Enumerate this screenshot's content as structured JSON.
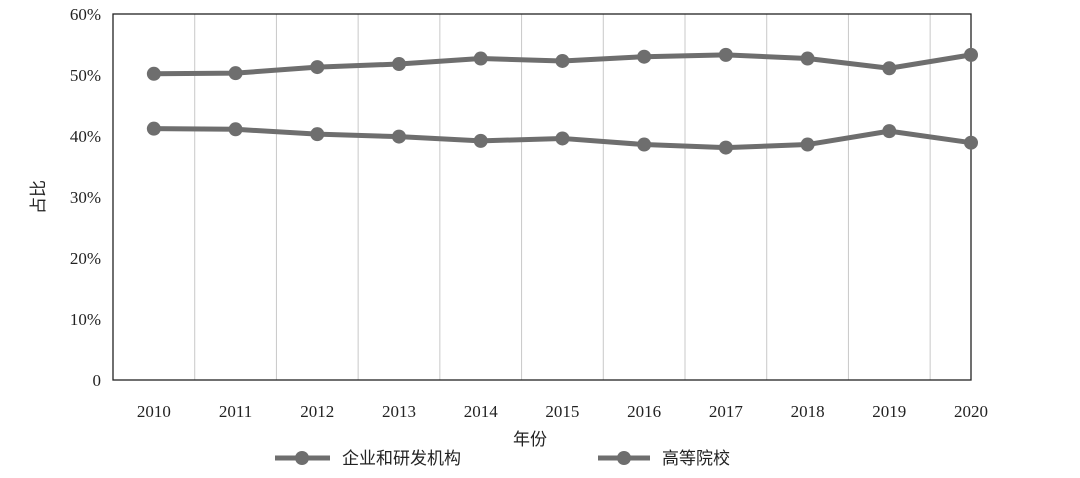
{
  "chart_data": {
    "type": "line",
    "categories": [
      "2010",
      "2011",
      "2012",
      "2013",
      "2014",
      "2015",
      "2016",
      "2017",
      "2018",
      "2019",
      "2020"
    ],
    "series": [
      {
        "name": "企业和研发机构",
        "values": [
          50.2,
          50.3,
          51.3,
          51.8,
          52.7,
          52.3,
          53.0,
          53.3,
          52.7,
          51.1,
          53.3
        ]
      },
      {
        "name": "高等院校",
        "values": [
          41.2,
          41.1,
          40.3,
          39.9,
          39.2,
          39.6,
          38.6,
          38.1,
          38.6,
          40.8,
          38.9
        ]
      }
    ],
    "y_ticks": [
      "0",
      "10%",
      "20%",
      "30%",
      "40%",
      "50%",
      "60%"
    ],
    "ylim": [
      0,
      60
    ],
    "xlabel": "年份",
    "ylabel": "占比",
    "grid": "vertical",
    "legend_position": "bottom",
    "colors": {
      "line": "#6e6e6e",
      "grid": "#c8c8c8",
      "axis": "#222222"
    }
  }
}
